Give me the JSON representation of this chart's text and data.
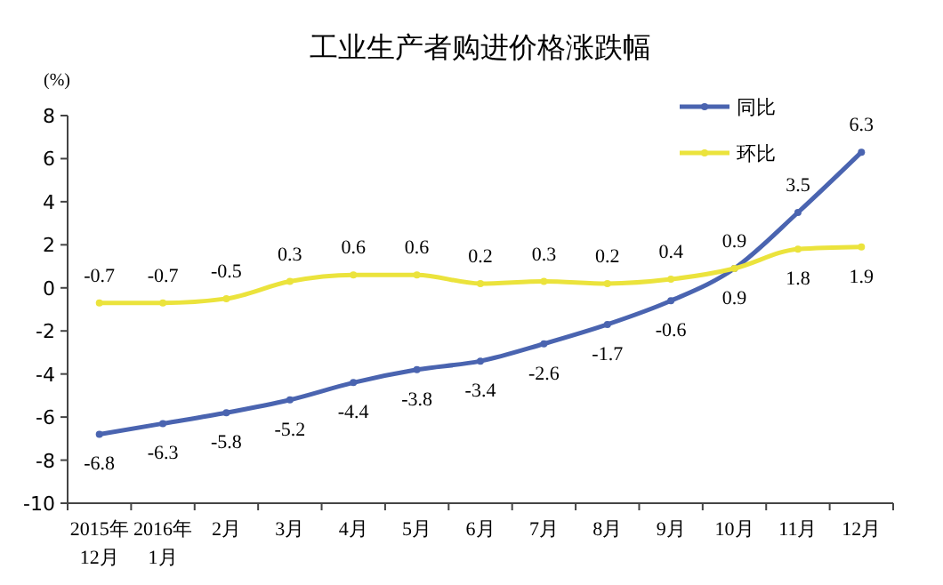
{
  "chart_data": {
    "type": "line",
    "title": "工业生产者购进价格涨跌幅",
    "ylabel": "(%)",
    "categories": [
      "2015年\n12月",
      "2016年\n1月",
      "2月",
      "3月",
      "4月",
      "5月",
      "6月",
      "7月",
      "8月",
      "9月",
      "10月",
      "11月",
      "12月"
    ],
    "series": [
      {
        "name": "同比",
        "color": "#4a64b0",
        "values": [
          -6.8,
          -6.3,
          -5.8,
          -5.2,
          -4.4,
          -3.8,
          -3.4,
          -2.6,
          -1.7,
          -0.6,
          0.9,
          3.5,
          6.3
        ]
      },
      {
        "name": "环比",
        "color": "#ebe33c",
        "values": [
          -0.7,
          -0.7,
          -0.5,
          0.3,
          0.6,
          0.6,
          0.2,
          0.3,
          0.2,
          0.4,
          0.9,
          1.8,
          1.9
        ]
      }
    ],
    "ylim": [
      -10,
      8
    ],
    "yticks": [
      -10,
      -8,
      -6,
      -4,
      -2,
      0,
      2,
      4,
      6,
      8
    ],
    "grid": false,
    "legend": "top right",
    "marker": "circle",
    "line_style": "solid",
    "data_labels": true
  }
}
